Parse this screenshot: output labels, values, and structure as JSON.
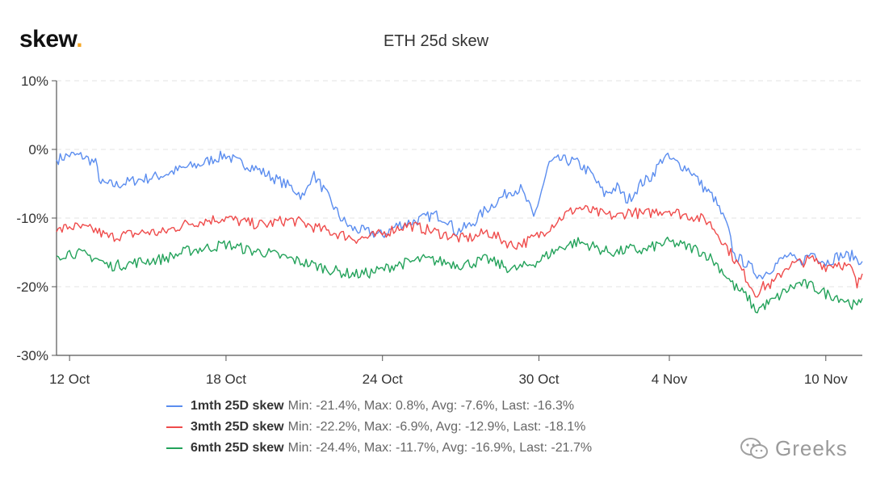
{
  "brand": {
    "name": "skew",
    "dot": "."
  },
  "watermark": {
    "text": "Greeks",
    "icon": "wechat-icon"
  },
  "colors": {
    "s1": "#5b8def",
    "s2": "#ef4b4b",
    "s3": "#23a25a",
    "grid": "#e3e3e3",
    "axis": "#555555"
  },
  "chart_data": {
    "type": "line",
    "title": "ETH 25d skew",
    "x_ticks": [
      "12 Oct",
      "18 Oct",
      "24 Oct",
      "30 Oct",
      "4 Nov",
      "10 Nov"
    ],
    "x_tick_days": [
      1,
      7,
      13,
      19,
      24,
      30
    ],
    "x_range_days": [
      0.5,
      31.4
    ],
    "y_ticks": [
      "10%",
      "0%",
      "-10%",
      "-20%",
      "-30%"
    ],
    "y_tick_values": [
      10,
      0,
      -10,
      -20,
      -30
    ],
    "ylim": [
      -30,
      10
    ],
    "grid": "horizontal dashed",
    "legend_position": "bottom",
    "series": [
      {
        "name": "1mth 25D skew",
        "stats": "Min: -21.4%, Max: 0.8%, Avg: -7.6%, Last: -16.3%",
        "points": [
          [
            0.5,
            -1.5
          ],
          [
            1,
            -0.8
          ],
          [
            1.5,
            -1.0
          ],
          [
            2,
            -2.0
          ],
          [
            2.2,
            -5.0
          ],
          [
            2.8,
            -5.2
          ],
          [
            3.5,
            -4.5
          ],
          [
            4,
            -4.2
          ],
          [
            4.5,
            -3.8
          ],
          [
            5,
            -3.2
          ],
          [
            5.5,
            -2.6
          ],
          [
            6,
            -2.2
          ],
          [
            6.5,
            -1.4
          ],
          [
            7,
            -0.8
          ],
          [
            7.4,
            -1.8
          ],
          [
            8,
            -2.5
          ],
          [
            8.5,
            -3.5
          ],
          [
            9,
            -4.5
          ],
          [
            9.5,
            -5.5
          ],
          [
            10,
            -7.0
          ],
          [
            10.3,
            -3.5
          ],
          [
            10.6,
            -5.0
          ],
          [
            11,
            -7.5
          ],
          [
            11.4,
            -10.0
          ],
          [
            11.8,
            -11.5
          ],
          [
            12.4,
            -12.0
          ],
          [
            13,
            -12.5
          ],
          [
            13.6,
            -11.0
          ],
          [
            14.2,
            -10.5
          ],
          [
            15,
            -9.5
          ],
          [
            15.5,
            -10.2
          ],
          [
            15.8,
            -12.0
          ],
          [
            16.4,
            -11.0
          ],
          [
            16.9,
            -9.0
          ],
          [
            17.4,
            -7.5
          ],
          [
            17.9,
            -6.0
          ],
          [
            18.3,
            -5.8
          ],
          [
            18.6,
            -8.0
          ],
          [
            18.8,
            -10.0
          ],
          [
            19.1,
            -6.0
          ],
          [
            19.4,
            -2.0
          ],
          [
            19.8,
            -1.5
          ],
          [
            20.4,
            -1.8
          ],
          [
            21,
            -3.5
          ],
          [
            21.5,
            -6.5
          ],
          [
            22,
            -5.5
          ],
          [
            22.4,
            -7.5
          ],
          [
            22.9,
            -5.0
          ],
          [
            23.3,
            -4.0
          ],
          [
            23.8,
            -1.0
          ],
          [
            24.3,
            -2.0
          ],
          [
            24.8,
            -3.0
          ],
          [
            25.3,
            -5.5
          ],
          [
            25.7,
            -7.0
          ],
          [
            26.2,
            -11.0
          ],
          [
            26.5,
            -15.5
          ],
          [
            26.9,
            -16.5
          ],
          [
            27.5,
            -18.5
          ],
          [
            28,
            -17.0
          ],
          [
            28.5,
            -15.5
          ],
          [
            29,
            -16.5
          ],
          [
            29.5,
            -15.0
          ],
          [
            30,
            -16.5
          ],
          [
            30.5,
            -15.5
          ],
          [
            31,
            -15.5
          ],
          [
            31.4,
            -16.3
          ]
        ]
      },
      {
        "name": "3mth 25D skew",
        "stats": "Min: -22.2%, Max: -6.9%, Avg: -12.9%, Last: -18.1%",
        "points": [
          [
            0.5,
            -12.0
          ],
          [
            1,
            -11.2
          ],
          [
            1.5,
            -11.5
          ],
          [
            2,
            -11.8
          ],
          [
            2.5,
            -12.8
          ],
          [
            3,
            -12.5
          ],
          [
            3.5,
            -12.3
          ],
          [
            4,
            -12.0
          ],
          [
            4.5,
            -12.2
          ],
          [
            5,
            -11.5
          ],
          [
            5.5,
            -10.8
          ],
          [
            6,
            -10.5
          ],
          [
            6.5,
            -10.2
          ],
          [
            7,
            -10.0
          ],
          [
            7.5,
            -10.5
          ],
          [
            8,
            -10.8
          ],
          [
            8.5,
            -11.0
          ],
          [
            9,
            -10.5
          ],
          [
            9.5,
            -10.3
          ],
          [
            10,
            -10.8
          ],
          [
            10.5,
            -11.5
          ],
          [
            11,
            -12.0
          ],
          [
            11.5,
            -12.5
          ],
          [
            12,
            -13.0
          ],
          [
            12.5,
            -12.8
          ],
          [
            13,
            -12.3
          ],
          [
            13.5,
            -11.5
          ],
          [
            14,
            -11.0
          ],
          [
            14.5,
            -11.5
          ],
          [
            15,
            -12.0
          ],
          [
            15.5,
            -12.5
          ],
          [
            16,
            -13.0
          ],
          [
            16.5,
            -12.8
          ],
          [
            17,
            -12.0
          ],
          [
            17.5,
            -13.0
          ],
          [
            18,
            -14.0
          ],
          [
            18.5,
            -13.5
          ],
          [
            19,
            -12.5
          ],
          [
            19.5,
            -11.0
          ],
          [
            20,
            -9.5
          ],
          [
            20.5,
            -8.5
          ],
          [
            21,
            -9.0
          ],
          [
            21.5,
            -9.5
          ],
          [
            22,
            -9.8
          ],
          [
            22.5,
            -9.0
          ],
          [
            23,
            -9.5
          ],
          [
            23.5,
            -9.0
          ],
          [
            24,
            -8.8
          ],
          [
            24.5,
            -9.5
          ],
          [
            25,
            -9.8
          ],
          [
            25.5,
            -10.5
          ],
          [
            26,
            -13.0
          ],
          [
            26.5,
            -16.0
          ],
          [
            27,
            -19.0
          ],
          [
            27.3,
            -21.0
          ],
          [
            27.6,
            -20.0
          ],
          [
            28,
            -19.5
          ],
          [
            28.5,
            -17.0
          ],
          [
            29,
            -16.5
          ],
          [
            29.5,
            -16.0
          ],
          [
            30,
            -17.0
          ],
          [
            30.5,
            -16.5
          ],
          [
            31,
            -17.5
          ],
          [
            31.2,
            -20.0
          ],
          [
            31.4,
            -18.1
          ]
        ]
      },
      {
        "name": "6mth 25D skew",
        "stats": "Min: -24.4%, Max: -11.7%, Avg: -16.9%, Last: -21.7%",
        "points": [
          [
            0.5,
            -15.5
          ],
          [
            1,
            -15.0
          ],
          [
            1.5,
            -15.3
          ],
          [
            2,
            -15.8
          ],
          [
            2.5,
            -17.0
          ],
          [
            3,
            -16.8
          ],
          [
            3.5,
            -16.5
          ],
          [
            4,
            -16.2
          ],
          [
            4.5,
            -16.0
          ],
          [
            5,
            -15.5
          ],
          [
            5.5,
            -14.8
          ],
          [
            6,
            -14.5
          ],
          [
            6.5,
            -14.2
          ],
          [
            7,
            -13.8
          ],
          [
            7.5,
            -14.3
          ],
          [
            8,
            -14.8
          ],
          [
            8.5,
            -15.0
          ],
          [
            9,
            -15.5
          ],
          [
            9.5,
            -16.0
          ],
          [
            10,
            -16.5
          ],
          [
            10.5,
            -17.0
          ],
          [
            11,
            -17.5
          ],
          [
            11.5,
            -18.0
          ],
          [
            12,
            -18.2
          ],
          [
            12.5,
            -18.0
          ],
          [
            13,
            -17.5
          ],
          [
            13.5,
            -16.8
          ],
          [
            14,
            -16.5
          ],
          [
            14.5,
            -16.0
          ],
          [
            15,
            -16.2
          ],
          [
            15.5,
            -16.5
          ],
          [
            16,
            -16.8
          ],
          [
            16.5,
            -16.5
          ],
          [
            17,
            -16.0
          ],
          [
            17.5,
            -16.8
          ],
          [
            18,
            -17.5
          ],
          [
            18.5,
            -17.0
          ],
          [
            19,
            -16.2
          ],
          [
            19.5,
            -15.0
          ],
          [
            20,
            -14.0
          ],
          [
            20.5,
            -13.5
          ],
          [
            21,
            -14.0
          ],
          [
            21.5,
            -14.8
          ],
          [
            22,
            -15.0
          ],
          [
            22.5,
            -14.5
          ],
          [
            23,
            -14.8
          ],
          [
            23.5,
            -14.0
          ],
          [
            24,
            -13.5
          ],
          [
            24.5,
            -14.0
          ],
          [
            25,
            -14.5
          ],
          [
            25.5,
            -15.5
          ],
          [
            26,
            -17.5
          ],
          [
            26.5,
            -20.0
          ],
          [
            27,
            -21.5
          ],
          [
            27.3,
            -23.5
          ],
          [
            27.6,
            -22.8
          ],
          [
            28,
            -22.0
          ],
          [
            28.5,
            -20.5
          ],
          [
            29,
            -19.5
          ],
          [
            29.5,
            -20.0
          ],
          [
            30,
            -21.0
          ],
          [
            30.5,
            -21.5
          ],
          [
            31,
            -22.5
          ],
          [
            31.2,
            -23.0
          ],
          [
            31.4,
            -21.7
          ]
        ]
      }
    ]
  }
}
